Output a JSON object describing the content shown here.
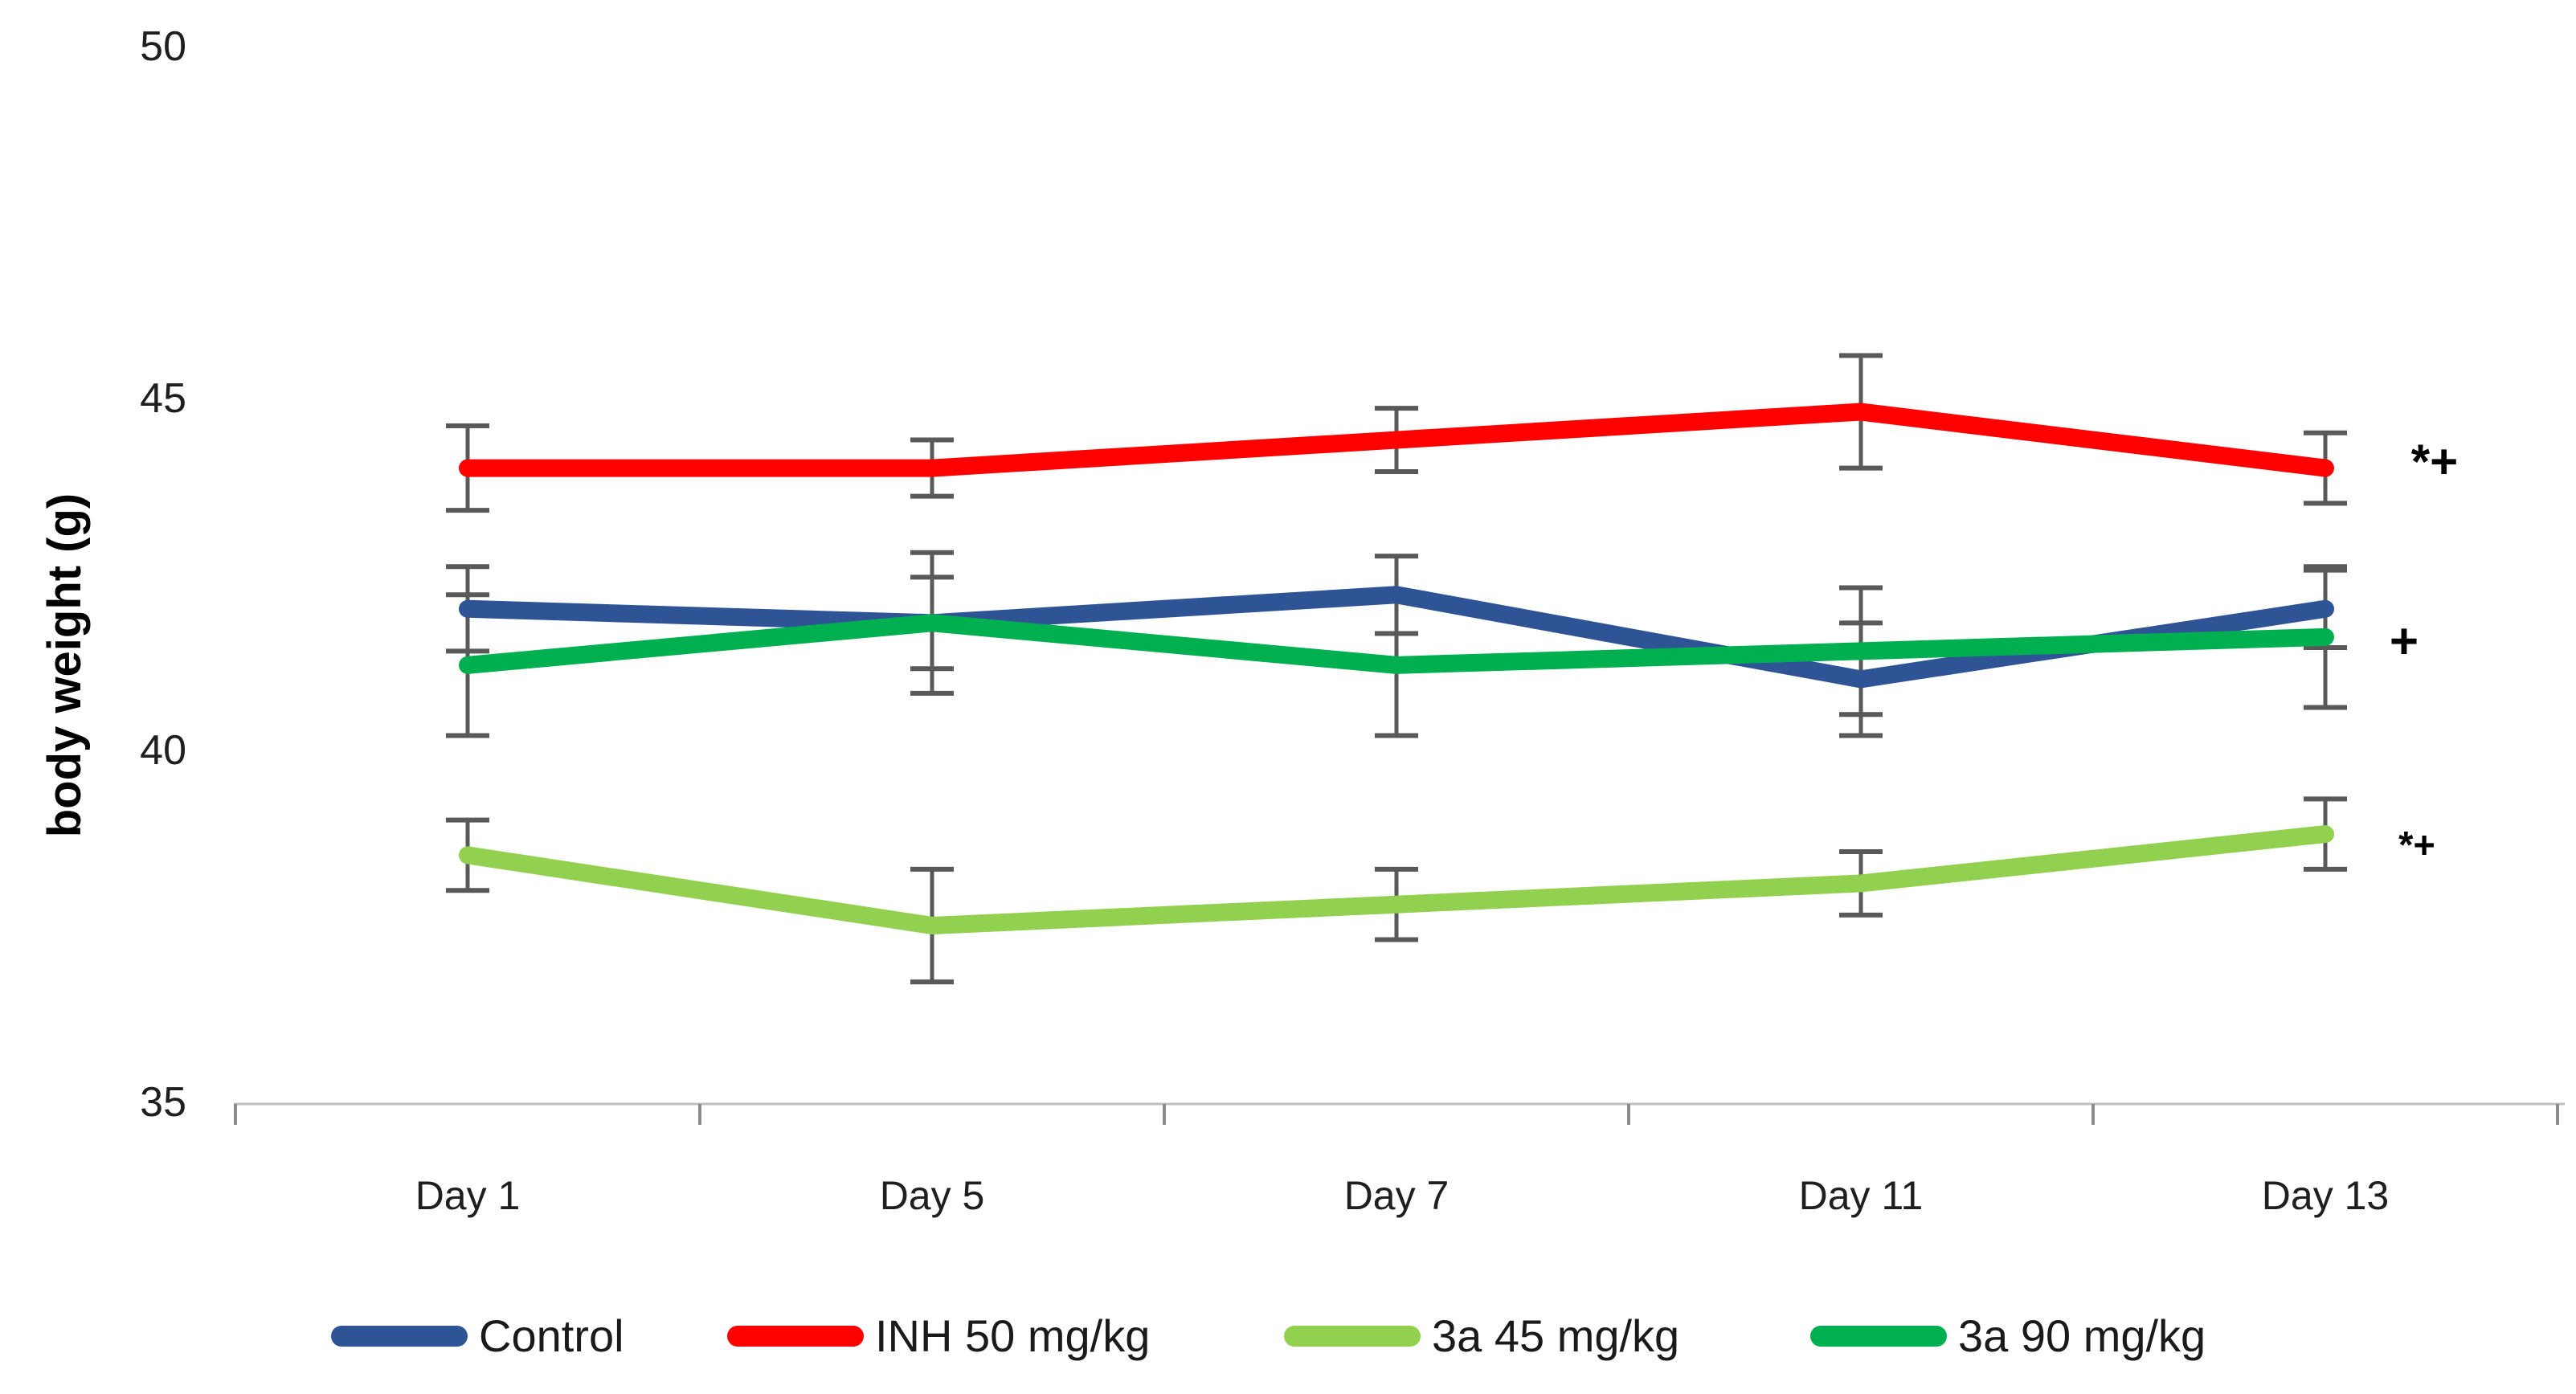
{
  "figure": {
    "background": "#ffffff",
    "kind": "line-chart-with-error-bars"
  },
  "chart_data": {
    "type": "line",
    "title": "",
    "xlabel": "",
    "ylabel": "body weight (g)",
    "categories": [
      "Day 1",
      "Day 5",
      "Day 7",
      "Day 11",
      "Day 13"
    ],
    "y_ticks": [
      50,
      45,
      40,
      35
    ],
    "ylim": [
      35,
      50
    ],
    "grid": false,
    "legend_position": "bottom",
    "error_bars": true,
    "series": [
      {
        "name": "Control",
        "color": "#2F5496",
        "values": [
          42.0,
          41.8,
          42.2,
          41.0,
          42.0
        ],
        "errors": [
          0.6,
          1.0,
          0.55,
          0.8,
          0.55
        ]
      },
      {
        "name": "INH 50 mg/kg",
        "color": "#FE0000",
        "values": [
          44.0,
          44.0,
          44.4,
          44.8,
          44.0
        ],
        "errors": [
          0.6,
          0.4,
          0.45,
          0.8,
          0.5
        ]
      },
      {
        "name": "3a 45 mg/kg",
        "color": "#92D050",
        "values": [
          38.5,
          37.5,
          37.8,
          38.1,
          38.8
        ],
        "errors": [
          0.5,
          0.8,
          0.5,
          0.45,
          0.5
        ]
      },
      {
        "name": "3a 90 mg/kg",
        "color": "#00B050",
        "values": [
          41.2,
          41.8,
          41.2,
          41.4,
          41.6
        ],
        "errors": [
          1.0,
          0.65,
          1.0,
          0.9,
          1.0
        ]
      }
    ],
    "annotations": [
      {
        "text": "*+",
        "near_series": "INH 50 mg/kg",
        "at_category": "Day 13",
        "y_value": 44.1
      },
      {
        "text": "+",
        "near_series": "Control / 3a 90 mg/kg",
        "at_category": "Day 13",
        "y_value": 41.55
      },
      {
        "text": "*+",
        "near_series": "3a 45 mg/kg",
        "at_category": "Day 13",
        "y_value": 38.65
      }
    ],
    "colors": {
      "error_bar": "#595959",
      "axis_line": "#BFBFBF",
      "axis_tick": "#8C8C8C",
      "tick_text": "#1f1f1f",
      "label_text": "#000000"
    }
  }
}
